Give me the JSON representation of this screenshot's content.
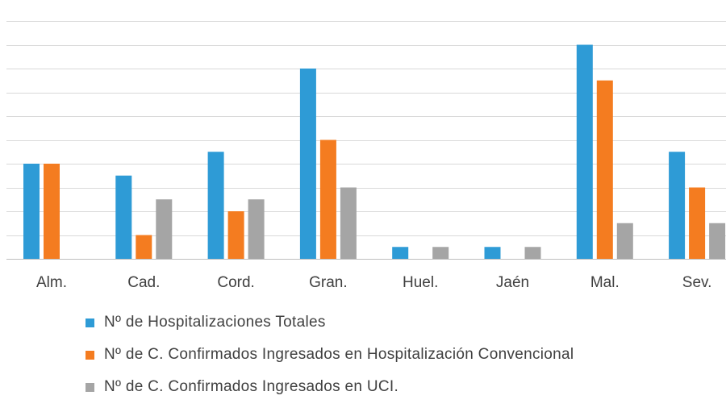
{
  "chart_data": {
    "type": "bar",
    "categories": [
      "Alm.",
      "Cad.",
      "Cord.",
      "Gran.",
      "Huel.",
      "Jaén",
      "Mal.",
      "Sev."
    ],
    "series": [
      {
        "name": "Nº de Hospitalizaciones Totales",
        "color": "#2e9bd6",
        "values": [
          8,
          7,
          9,
          16,
          1,
          1,
          18,
          9
        ]
      },
      {
        "name": "Nº de C. Confirmados Ingresados en Hospitalización Convencional",
        "color": "#f47c20",
        "values": [
          8,
          2,
          4,
          10,
          0,
          0,
          15,
          6
        ]
      },
      {
        "name": "Nº de C. Confirmados Ingresados en UCI.",
        "color": "#a5a5a5",
        "values": [
          0,
          5,
          5,
          6,
          1,
          1,
          3,
          3
        ]
      }
    ],
    "ylim": [
      0,
      20
    ],
    "grid": true,
    "legend_position": "bottom"
  }
}
